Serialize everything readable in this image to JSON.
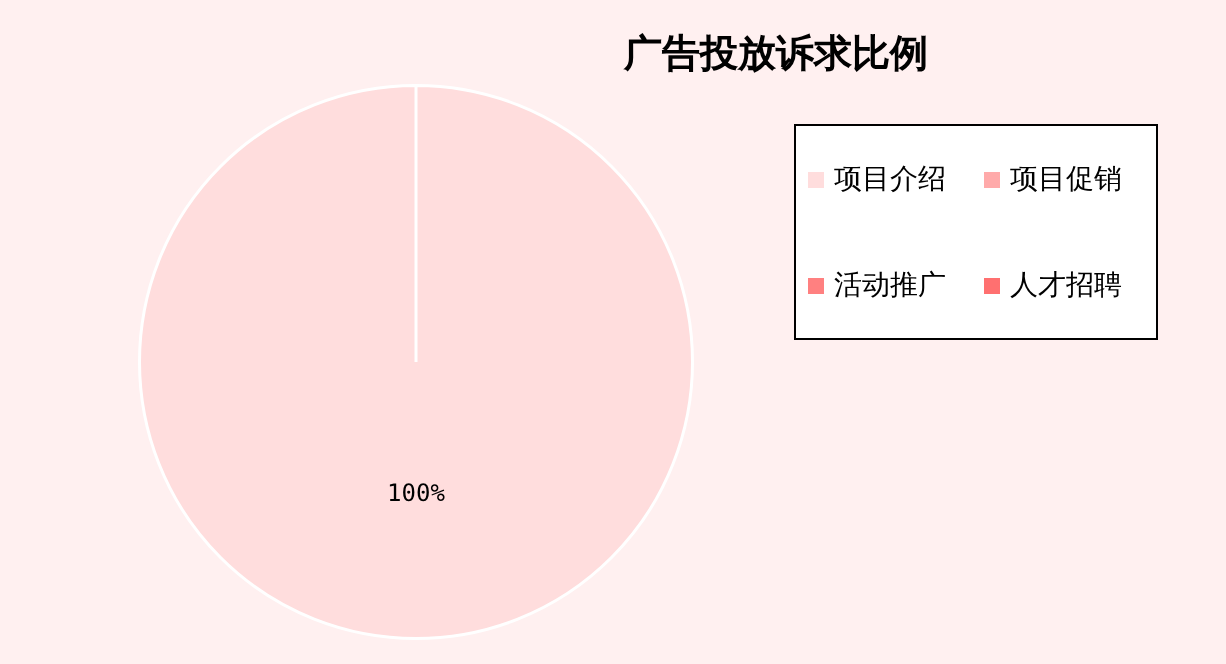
{
  "chart_data": {
    "type": "pie",
    "title": "广告投放诉求比例",
    "categories": [
      "项目介绍",
      "项目促销",
      "活动推广",
      "人才招聘"
    ],
    "values": [
      100,
      0,
      0,
      0
    ],
    "colors": [
      "#ffdddd",
      "#ffaaaa",
      "#ff8080",
      "#ff7070"
    ],
    "value_labels": [
      "100%",
      null,
      null,
      null
    ],
    "legend": "right"
  }
}
